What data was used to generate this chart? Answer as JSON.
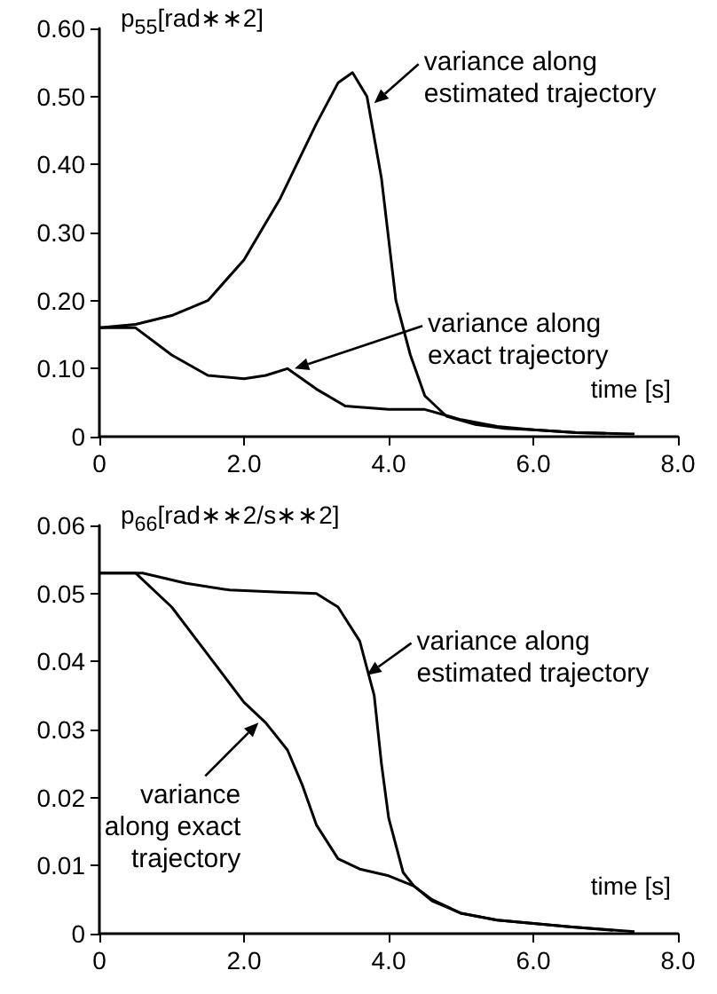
{
  "chart_data": [
    {
      "type": "line",
      "ylabel": "p$_{55}$[rad∗∗2]",
      "xlabel": "time [s]",
      "xlim": [
        0,
        8
      ],
      "xticks": [
        0,
        {
          "value": 2,
          "label": "2.0"
        },
        {
          "value": 4,
          "label": "4.0"
        },
        {
          "value": 6,
          "label": "6.0"
        },
        {
          "value": 8,
          "label": "8.0"
        }
      ],
      "ylim": [
        0,
        0.6
      ],
      "yticks": [
        0,
        {
          "value": 0.1,
          "label": "0.10"
        },
        {
          "value": 0.2,
          "label": "0.20"
        },
        {
          "value": 0.3,
          "label": "0.30"
        },
        {
          "value": 0.4,
          "label": "0.40"
        },
        {
          "value": 0.5,
          "label": "0.50"
        },
        {
          "value": 0.6,
          "label": "0.60"
        }
      ],
      "grid": false,
      "series": [
        {
          "color": "#000000",
          "x": [
            0,
            0.5,
            1.0,
            1.5,
            2.0,
            2.5,
            3.0,
            3.3,
            3.5,
            3.7,
            3.9,
            4.1,
            4.3,
            4.5,
            4.8,
            5.2,
            5.6,
            6.0,
            6.6,
            7.4
          ],
          "values": [
            0.16,
            0.165,
            0.178,
            0.2,
            0.26,
            0.35,
            0.46,
            0.52,
            0.535,
            0.5,
            0.38,
            0.2,
            0.12,
            0.06,
            0.03,
            0.018,
            0.012,
            0.01,
            0.006,
            0.004
          ]
        },
        {
          "color": "#000000",
          "x": [
            0,
            0.5,
            1.0,
            1.5,
            2.0,
            2.3,
            2.6,
            3.0,
            3.4,
            4.0,
            4.5,
            5.0,
            5.5,
            6.0,
            6.6,
            7.0
          ],
          "values": [
            0.16,
            0.16,
            0.12,
            0.09,
            0.085,
            0.09,
            0.1,
            0.07,
            0.045,
            0.04,
            0.04,
            0.025,
            0.015,
            0.01,
            0.006,
            0.005
          ]
        }
      ],
      "annotations": [
        {
          "text": "variance along\nestimated trajectory",
          "x": 3.8,
          "y": 0.49
        },
        {
          "text": "variance along\nexact trajectory",
          "x": 2.7,
          "y": 0.1
        }
      ]
    },
    {
      "type": "line",
      "ylabel": "p$_{66}$[rad∗∗2/s∗∗2]",
      "xlabel": "time [s]",
      "xlim": [
        0,
        8
      ],
      "xticks": [
        0,
        {
          "value": 2,
          "label": "2.0"
        },
        {
          "value": 4,
          "label": "4.0"
        },
        {
          "value": 6,
          "label": "6.0"
        },
        {
          "value": 8,
          "label": "8.0"
        }
      ],
      "ylim": [
        0,
        0.06
      ],
      "yticks": [
        0,
        {
          "value": 0.01,
          "label": "0.01"
        },
        {
          "value": 0.02,
          "label": "0.02"
        },
        {
          "value": 0.03,
          "label": "0.03"
        },
        {
          "value": 0.04,
          "label": "0.04"
        },
        {
          "value": 0.05,
          "label": "0.05"
        },
        {
          "value": 0.06,
          "label": "0.06"
        }
      ],
      "grid": false,
      "series": [
        {
          "color": "#000000",
          "x": [
            0,
            0.6,
            1.2,
            1.8,
            2.5,
            3.0,
            3.3,
            3.6,
            3.8,
            3.9,
            4.0,
            4.2,
            4.35,
            4.6,
            5.0,
            5.5,
            6.0,
            6.5,
            7.4
          ],
          "values": [
            0.053,
            0.053,
            0.0515,
            0.0505,
            0.0502,
            0.05,
            0.048,
            0.043,
            0.035,
            0.025,
            0.017,
            0.009,
            0.007,
            0.005,
            0.003,
            0.002,
            0.0015,
            0.001,
            0.0003
          ]
        },
        {
          "color": "#000000",
          "x": [
            0,
            0.5,
            1.0,
            1.5,
            2.0,
            2.3,
            2.6,
            2.8,
            3.0,
            3.3,
            3.6,
            4.0,
            4.35,
            4.6,
            5.0,
            5.5,
            6.0,
            6.5,
            7.1
          ],
          "values": [
            0.053,
            0.053,
            0.048,
            0.041,
            0.034,
            0.031,
            0.027,
            0.022,
            0.016,
            0.011,
            0.0095,
            0.0085,
            0.007,
            0.0048,
            0.003,
            0.002,
            0.0015,
            0.001,
            0.0005
          ]
        }
      ],
      "annotations": [
        {
          "text": "variance along\nestimated trajectory",
          "x": 3.7,
          "y": 0.038
        },
        {
          "text": "variance\nalong exact\ntrajectory",
          "x": 2.2,
          "y": 0.031
        }
      ]
    }
  ]
}
